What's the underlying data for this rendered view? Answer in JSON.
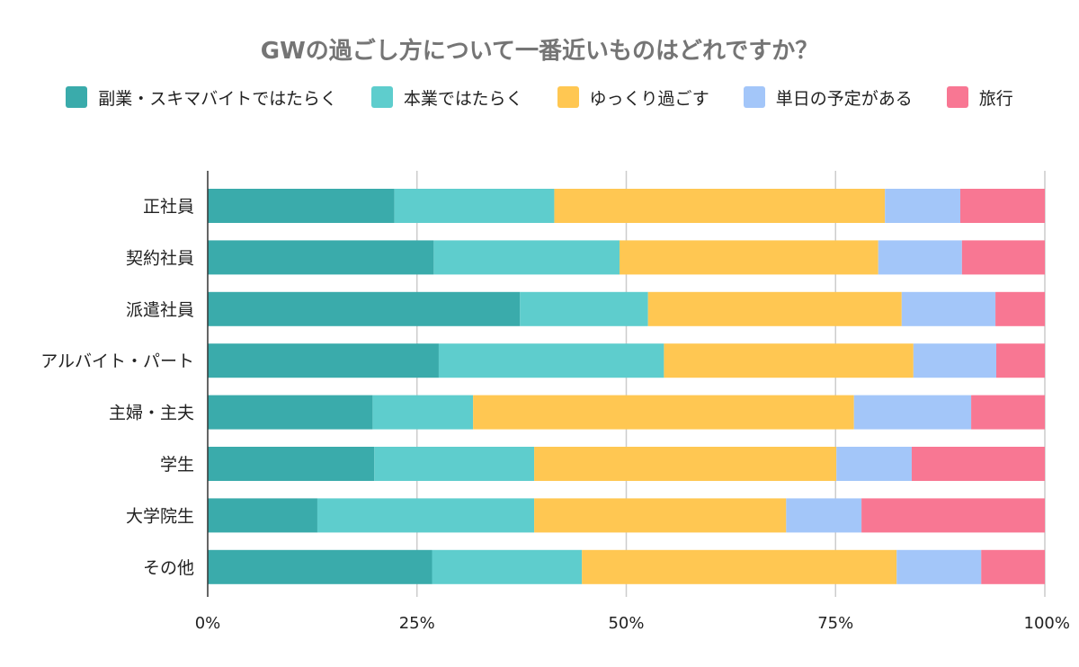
{
  "chart_data": {
    "type": "bar",
    "orientation": "horizontal",
    "stacked": "percent",
    "title": "GWの過ごし方について一番近いものはどれですか？",
    "categories": [
      "正社員",
      "契約社員",
      "派遣社員",
      "アルバイト・パート",
      "主婦・主夫",
      "学生",
      "大学院生",
      "その他"
    ],
    "series": [
      {
        "name": "副業・スキマバイトではたらく",
        "color": "#3aabab",
        "values": [
          22.3,
          27.0,
          37.3,
          27.6,
          19.7,
          19.9,
          13.1,
          26.8
        ]
      },
      {
        "name": "本業ではたらく",
        "color": "#5ecdcd",
        "values": [
          19.1,
          22.2,
          15.3,
          26.9,
          12.0,
          19.1,
          25.9,
          17.9
        ]
      },
      {
        "name": "ゆっくり過ごす",
        "color": "#ffc752",
        "values": [
          39.5,
          30.9,
          30.3,
          29.8,
          45.5,
          36.1,
          30.1,
          37.6
        ]
      },
      {
        "name": "単日の予定がある",
        "color": "#a3c6f9",
        "values": [
          9.0,
          10.0,
          11.2,
          9.9,
          14.0,
          9.0,
          9.0,
          10.1
        ]
      },
      {
        "name": "旅行",
        "color": "#f87793",
        "values": [
          10.1,
          9.9,
          5.9,
          5.8,
          8.8,
          15.9,
          21.9,
          7.6
        ]
      }
    ],
    "xaxis": {
      "ticks": [
        "0%",
        "25%",
        "50%",
        "75%",
        "100%"
      ],
      "range": [
        0,
        100
      ]
    },
    "grid": true,
    "legend_position": "top"
  }
}
